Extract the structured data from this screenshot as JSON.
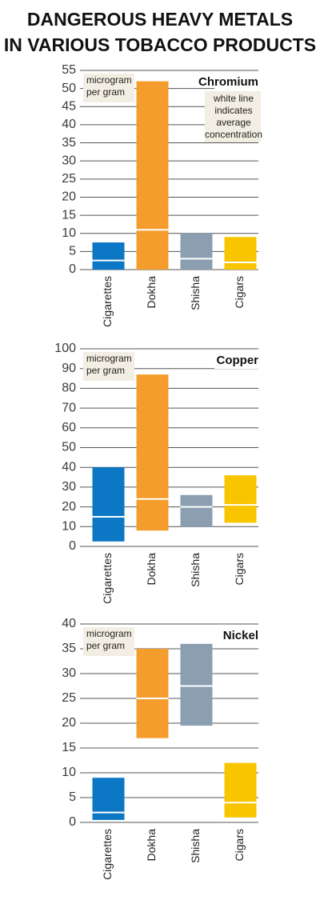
{
  "title_lines": [
    "DANGEROUS HEAVY METALS",
    "IN VARIOUS TOBACCO PRODUCTS"
  ],
  "chart_data": [
    {
      "type": "range-bar",
      "title": "Chromium",
      "unit_lines": [
        "microgram",
        "per gram"
      ],
      "note_lines": [
        "white line",
        "indicates",
        "average",
        "concentration"
      ],
      "categories": [
        "Cigarettes",
        "Dokha",
        "Shisha",
        "Cigars"
      ],
      "colors": [
        "#0b77c5",
        "#f49d2c",
        "#8b9fb1",
        "#f8c500"
      ],
      "low": [
        0,
        0,
        0,
        0
      ],
      "high": [
        7.5,
        52,
        10,
        9
      ],
      "average": [
        2.5,
        11,
        3,
        2
      ],
      "ylim": [
        0,
        55
      ],
      "yticks": [
        0,
        5,
        10,
        15,
        20,
        25,
        30,
        35,
        40,
        45,
        50,
        55
      ],
      "grid": true
    },
    {
      "type": "range-bar",
      "title": "Copper",
      "unit_lines": [
        "microgram",
        "per gram"
      ],
      "categories": [
        "Cigarettes",
        "Dokha",
        "Shisha",
        "Cigars"
      ],
      "colors": [
        "#0b77c5",
        "#f49d2c",
        "#8b9fb1",
        "#f8c500"
      ],
      "low": [
        2.5,
        8,
        10,
        12
      ],
      "high": [
        40,
        87,
        26,
        36
      ],
      "average": [
        15,
        24,
        20,
        21
      ],
      "ylim": [
        0,
        100
      ],
      "yticks": [
        0,
        10,
        20,
        30,
        40,
        50,
        60,
        70,
        80,
        90,
        100
      ],
      "grid": true
    },
    {
      "type": "range-bar",
      "title": "Nickel",
      "unit_lines": [
        "microgram",
        "per gram"
      ],
      "categories": [
        "Cigarettes",
        "Dokha",
        "Shisha",
        "Cigars"
      ],
      "colors": [
        "#0b77c5",
        "#f49d2c",
        "#8b9fb1",
        "#f8c500"
      ],
      "low": [
        0.5,
        17,
        19.5,
        1
      ],
      "high": [
        9,
        35,
        36,
        12
      ],
      "average": [
        2,
        25,
        27.5,
        4
      ],
      "ylim": [
        0,
        40
      ],
      "yticks": [
        0,
        5,
        10,
        15,
        20,
        25,
        30,
        35,
        40
      ],
      "grid": true
    }
  ]
}
